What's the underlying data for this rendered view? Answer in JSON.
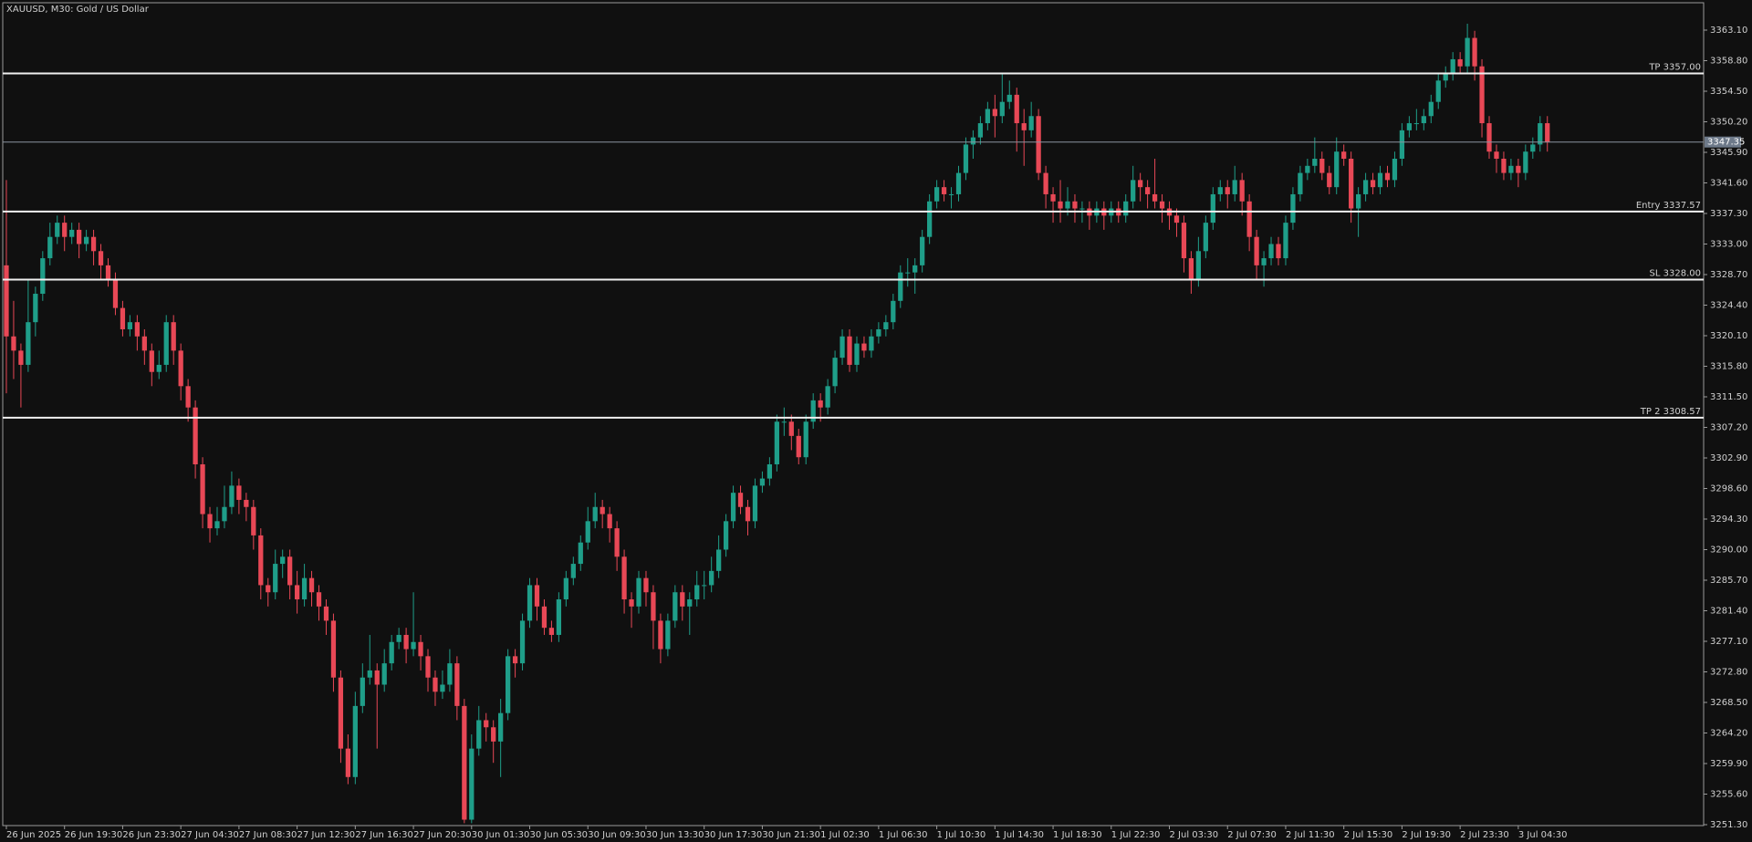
{
  "chart_data": {
    "type": "candlestick",
    "title": "XAUUSD, M30:  Gold / US Dollar",
    "up_color": "#1f9e89",
    "down_color": "#e84856",
    "ylim": [
      3251.17,
      3366.95
    ],
    "yticks": [
      {
        "value": 3363.1,
        "label": "3363.10"
      },
      {
        "value": 3358.8,
        "label": "3358.80"
      },
      {
        "value": 3354.5,
        "label": "3354.50"
      },
      {
        "value": 3350.2,
        "label": "3350.20"
      },
      {
        "value": 3345.9,
        "label": "3345.90"
      },
      {
        "value": 3341.6,
        "label": "3341.60"
      },
      {
        "value": 3337.3,
        "label": "3337.30"
      },
      {
        "value": 3333.0,
        "label": "3333.00"
      },
      {
        "value": 3328.7,
        "label": "3328.70"
      },
      {
        "value": 3324.4,
        "label": "3324.40"
      },
      {
        "value": 3320.1,
        "label": "3320.10"
      },
      {
        "value": 3315.8,
        "label": "3315.80"
      },
      {
        "value": 3311.5,
        "label": "3311.50"
      },
      {
        "value": 3307.2,
        "label": "3307.20"
      },
      {
        "value": 3302.9,
        "label": "3302.90"
      },
      {
        "value": 3298.6,
        "label": "3298.60"
      },
      {
        "value": 3294.3,
        "label": "3294.30"
      },
      {
        "value": 3290.0,
        "label": "3290.00"
      },
      {
        "value": 3285.7,
        "label": "3285.70"
      },
      {
        "value": 3281.4,
        "label": "3281.40"
      },
      {
        "value": 3277.1,
        "label": "3277.10"
      },
      {
        "value": 3272.8,
        "label": "3272.80"
      },
      {
        "value": 3268.5,
        "label": "3268.50"
      },
      {
        "value": 3264.2,
        "label": "3264.20"
      },
      {
        "value": 3259.9,
        "label": "3259.90"
      },
      {
        "value": 3255.6,
        "label": "3255.60"
      },
      {
        "value": 3251.3,
        "label": "3251.30"
      }
    ],
    "xlim": [
      -0.5,
      233.5
    ],
    "xticks": [
      {
        "value": 0,
        "label": "26 Jun 2025"
      },
      {
        "value": 8,
        "label": "26 Jun 19:30"
      },
      {
        "value": 16,
        "label": "26 Jun 23:30"
      },
      {
        "value": 24,
        "label": "27 Jun 04:30"
      },
      {
        "value": 32,
        "label": "27 Jun 08:30"
      },
      {
        "value": 40,
        "label": "27 Jun 12:30"
      },
      {
        "value": 48,
        "label": "27 Jun 16:30"
      },
      {
        "value": 56,
        "label": "27 Jun 20:30"
      },
      {
        "value": 64,
        "label": "30 Jun 01:30"
      },
      {
        "value": 72,
        "label": "30 Jun 05:30"
      },
      {
        "value": 80,
        "label": "30 Jun 09:30"
      },
      {
        "value": 88,
        "label": "30 Jun 13:30"
      },
      {
        "value": 96,
        "label": "30 Jun 17:30"
      },
      {
        "value": 104,
        "label": "30 Jun 21:30"
      },
      {
        "value": 112,
        "label": "1 Jul 02:30"
      },
      {
        "value": 120,
        "label": "1 Jul 06:30"
      },
      {
        "value": 128,
        "label": "1 Jul 10:30"
      },
      {
        "value": 136,
        "label": "1 Jul 14:30"
      },
      {
        "value": 144,
        "label": "1 Jul 18:30"
      },
      {
        "value": 152,
        "label": "1 Jul 22:30"
      },
      {
        "value": 160,
        "label": "2 Jul 03:30"
      },
      {
        "value": 168,
        "label": "2 Jul 07:30"
      },
      {
        "value": 176,
        "label": "2 Jul 11:30"
      },
      {
        "value": 184,
        "label": "2 Jul 15:30"
      },
      {
        "value": 192,
        "label": "2 Jul 19:30"
      },
      {
        "value": 200,
        "label": "2 Jul 23:30"
      },
      {
        "value": 208,
        "label": "3 Jul 04:30"
      }
    ],
    "levels": [
      {
        "value": 3357.0,
        "label": "TP 3357.00"
      },
      {
        "value": 3337.57,
        "label": "Entry 3337.57"
      },
      {
        "value": 3328.0,
        "label": "SL 3328.00"
      },
      {
        "value": 3308.57,
        "label": "TP 2 3308.57"
      }
    ],
    "current_price": {
      "value": 3347.35,
      "label": "3347.35"
    },
    "ohlc": [
      [
        3330,
        3342,
        3312,
        3320
      ],
      [
        3320,
        3325,
        3314,
        3318
      ],
      [
        3318,
        3319,
        3310,
        3316
      ],
      [
        3316,
        3328,
        3315,
        3322
      ],
      [
        3322,
        3327,
        3320,
        3326
      ],
      [
        3326,
        3332,
        3325,
        3331
      ],
      [
        3331,
        3336,
        3330,
        3334
      ],
      [
        3334,
        3337,
        3333,
        3336
      ],
      [
        3336,
        3337,
        3332,
        3334
      ],
      [
        3334,
        3336,
        3333,
        3335
      ],
      [
        3335,
        3336,
        3331,
        3333
      ],
      [
        3333,
        3335,
        3332,
        3334
      ],
      [
        3334,
        3335,
        3330,
        3332
      ],
      [
        3332,
        3333,
        3328,
        3330
      ],
      [
        3330,
        3331,
        3327,
        3328
      ],
      [
        3328,
        3329,
        3323,
        3324
      ],
      [
        3324,
        3325,
        3320,
        3321
      ],
      [
        3321,
        3323,
        3320,
        3322
      ],
      [
        3322,
        3323,
        3318,
        3320
      ],
      [
        3320,
        3321,
        3316,
        3318
      ],
      [
        3318,
        3319,
        3313,
        3315
      ],
      [
        3315,
        3318,
        3314,
        3316
      ],
      [
        3316,
        3323,
        3315,
        3322
      ],
      [
        3322,
        3323,
        3316,
        3318
      ],
      [
        3318,
        3319,
        3311,
        3313
      ],
      [
        3313,
        3314,
        3308,
        3310
      ],
      [
        3310,
        3311,
        3300,
        3302
      ],
      [
        3302,
        3303,
        3293,
        3295
      ],
      [
        3295,
        3296,
        3291,
        3293
      ],
      [
        3293,
        3296,
        3292,
        3294
      ],
      [
        3294,
        3299,
        3293,
        3296
      ],
      [
        3296,
        3301,
        3295,
        3299
      ],
      [
        3299,
        3300,
        3295,
        3297
      ],
      [
        3297,
        3298,
        3294,
        3296
      ],
      [
        3296,
        3297,
        3290,
        3292
      ],
      [
        3292,
        3293,
        3283,
        3285
      ],
      [
        3285,
        3286,
        3282,
        3284
      ],
      [
        3284,
        3290,
        3283,
        3288
      ],
      [
        3288,
        3290,
        3286,
        3289
      ],
      [
        3289,
        3290,
        3283,
        3285
      ],
      [
        3285,
        3287,
        3281,
        3283
      ],
      [
        3283,
        3288,
        3282,
        3286
      ],
      [
        3286,
        3287,
        3282,
        3284
      ],
      [
        3284,
        3285,
        3280,
        3282
      ],
      [
        3282,
        3283,
        3278,
        3280
      ],
      [
        3280,
        3281,
        3270,
        3272
      ],
      [
        3272,
        3273,
        3260,
        3262
      ],
      [
        3262,
        3264,
        3257,
        3258
      ],
      [
        3258,
        3270,
        3257,
        3268
      ],
      [
        3268,
        3274,
        3267,
        3272
      ],
      [
        3272,
        3278,
        3271,
        3273
      ],
      [
        3273,
        3274,
        3262,
        3271
      ],
      [
        3271,
        3276,
        3270,
        3274
      ],
      [
        3274,
        3278,
        3273,
        3277
      ],
      [
        3277,
        3279,
        3276,
        3278
      ],
      [
        3278,
        3279,
        3274,
        3276
      ],
      [
        3276,
        3284,
        3275,
        3277
      ],
      [
        3277,
        3278,
        3273,
        3275
      ],
      [
        3275,
        3276,
        3270,
        3272
      ],
      [
        3272,
        3273,
        3268,
        3270
      ],
      [
        3270,
        3273,
        3269,
        3271
      ],
      [
        3271,
        3276,
        3270,
        3274
      ],
      [
        3274,
        3275,
        3266,
        3268
      ],
      [
        3268,
        3269,
        3251.5,
        3252
      ],
      [
        3252,
        3264,
        3251.5,
        3262
      ],
      [
        3262,
        3268,
        3261,
        3266
      ],
      [
        3266,
        3267,
        3263,
        3265
      ],
      [
        3265,
        3266,
        3260,
        3263
      ],
      [
        3263,
        3269,
        3258,
        3267
      ],
      [
        3267,
        3276,
        3266,
        3275
      ],
      [
        3275,
        3276,
        3272,
        3274
      ],
      [
        3274,
        3281,
        3273,
        3280
      ],
      [
        3280,
        3286,
        3279,
        3285
      ],
      [
        3285,
        3286,
        3280,
        3282
      ],
      [
        3282,
        3283,
        3278,
        3279
      ],
      [
        3279,
        3280,
        3277,
        3278
      ],
      [
        3278,
        3284,
        3277,
        3283
      ],
      [
        3283,
        3287,
        3282,
        3286
      ],
      [
        3286,
        3289,
        3285,
        3288
      ],
      [
        3288,
        3292,
        3287,
        3291
      ],
      [
        3291,
        3296,
        3290,
        3294
      ],
      [
        3294,
        3298,
        3293,
        3296
      ],
      [
        3296,
        3297,
        3293,
        3295
      ],
      [
        3295,
        3296,
        3291,
        3293
      ],
      [
        3293,
        3294,
        3287,
        3289
      ],
      [
        3289,
        3290,
        3281,
        3283
      ],
      [
        3283,
        3284,
        3279,
        3282
      ],
      [
        3282,
        3287,
        3281,
        3286
      ],
      [
        3286,
        3287,
        3282,
        3284
      ],
      [
        3284,
        3285,
        3276,
        3280
      ],
      [
        3280,
        3281,
        3274,
        3276
      ],
      [
        3276,
        3281,
        3275,
        3280
      ],
      [
        3280,
        3285,
        3279,
        3284
      ],
      [
        3284,
        3285,
        3280,
        3282
      ],
      [
        3282,
        3284,
        3278,
        3283
      ],
      [
        3283,
        3287,
        3282,
        3285
      ],
      [
        3285,
        3287,
        3283,
        3285
      ],
      [
        3285,
        3289,
        3284,
        3287
      ],
      [
        3287,
        3292,
        3286,
        3290
      ],
      [
        3290,
        3295,
        3289,
        3294
      ],
      [
        3294,
        3299,
        3293,
        3298
      ],
      [
        3298,
        3299,
        3295,
        3296
      ],
      [
        3296,
        3297,
        3292,
        3294
      ],
      [
        3294,
        3300,
        3293,
        3299
      ],
      [
        3299,
        3301,
        3298,
        3300
      ],
      [
        3300,
        3303,
        3299,
        3302
      ],
      [
        3302,
        3309,
        3301,
        3308
      ],
      [
        3308,
        3310,
        3306,
        3308
      ],
      [
        3308,
        3309,
        3304,
        3306
      ],
      [
        3306,
        3307,
        3302,
        3303
      ],
      [
        3303,
        3309,
        3302,
        3308
      ],
      [
        3308,
        3312,
        3307,
        3311
      ],
      [
        3311,
        3312,
        3308,
        3310
      ],
      [
        3310,
        3314,
        3309,
        3313
      ],
      [
        3313,
        3318,
        3312,
        3317
      ],
      [
        3317,
        3321,
        3316,
        3320
      ],
      [
        3320,
        3321,
        3315,
        3316
      ],
      [
        3316,
        3320,
        3315,
        3319
      ],
      [
        3319,
        3320,
        3317,
        3318
      ],
      [
        3318,
        3321,
        3317,
        3320
      ],
      [
        3320,
        3322,
        3319,
        3321
      ],
      [
        3321,
        3323,
        3320,
        3322
      ],
      [
        3322,
        3326,
        3321,
        3325
      ],
      [
        3325,
        3330,
        3324,
        3329
      ],
      [
        3329,
        3331,
        3327,
        3329
      ],
      [
        3329,
        3331,
        3326,
        3330
      ],
      [
        3330,
        3335,
        3329,
        3334
      ],
      [
        3334,
        3340,
        3333,
        3339
      ],
      [
        3339,
        3342,
        3338,
        3341
      ],
      [
        3341,
        3342,
        3339,
        3340
      ],
      [
        3340,
        3341,
        3338,
        3340
      ],
      [
        3340,
        3344,
        3339,
        3343
      ],
      [
        3343,
        3348,
        3342,
        3347
      ],
      [
        3347,
        3349,
        3345,
        3348
      ],
      [
        3348,
        3351,
        3347,
        3350
      ],
      [
        3350,
        3353,
        3349,
        3352
      ],
      [
        3352,
        3354,
        3348,
        3351
      ],
      [
        3351,
        3357,
        3350,
        3353
      ],
      [
        3353,
        3356,
        3352,
        3354
      ],
      [
        3354,
        3355,
        3346,
        3350
      ],
      [
        3350,
        3352,
        3344,
        3349
      ],
      [
        3349,
        3353,
        3348,
        3351
      ],
      [
        3351,
        3352,
        3342,
        3343
      ],
      [
        3343,
        3344,
        3338,
        3340
      ],
      [
        3340,
        3341,
        3336,
        3339
      ],
      [
        3339,
        3342,
        3336,
        3338
      ],
      [
        3338,
        3341,
        3337,
        3339
      ],
      [
        3339,
        3340,
        3336,
        3338
      ],
      [
        3338,
        3339,
        3336,
        3338
      ],
      [
        3338,
        3339,
        3335,
        3337
      ],
      [
        3337,
        3339,
        3336,
        3338
      ],
      [
        3338,
        3339,
        3335,
        3337
      ],
      [
        3337,
        3339,
        3336,
        3338
      ],
      [
        3338,
        3339,
        3336,
        3337
      ],
      [
        3337,
        3340,
        3336,
        3339
      ],
      [
        3339,
        3344,
        3338,
        3342
      ],
      [
        3342,
        3343,
        3339,
        3341
      ],
      [
        3341,
        3342,
        3338,
        3340
      ],
      [
        3340,
        3345,
        3338,
        3339
      ],
      [
        3339,
        3340,
        3336,
        3338
      ],
      [
        3338,
        3339,
        3335,
        3337
      ],
      [
        3337,
        3338,
        3334,
        3336
      ],
      [
        3336,
        3337,
        3329,
        3331
      ],
      [
        3331,
        3332,
        3326,
        3328
      ],
      [
        3328,
        3334,
        3327,
        3332
      ],
      [
        3332,
        3337,
        3331,
        3336
      ],
      [
        3336,
        3341,
        3335,
        3340
      ],
      [
        3340,
        3342,
        3339,
        3341
      ],
      [
        3341,
        3342,
        3338,
        3340
      ],
      [
        3340,
        3344,
        3339,
        3342
      ],
      [
        3342,
        3343,
        3337,
        3339
      ],
      [
        3339,
        3340,
        3332,
        3334
      ],
      [
        3334,
        3335,
        3328,
        3330
      ],
      [
        3330,
        3332,
        3327,
        3331
      ],
      [
        3331,
        3334,
        3330,
        3333
      ],
      [
        3333,
        3334,
        3330,
        3331
      ],
      [
        3331,
        3337,
        3330,
        3336
      ],
      [
        3336,
        3341,
        3335,
        3340
      ],
      [
        3340,
        3344,
        3339,
        3343
      ],
      [
        3343,
        3345,
        3342,
        3344
      ],
      [
        3344,
        3348,
        3343,
        3345
      ],
      [
        3345,
        3346,
        3342,
        3343
      ],
      [
        3343,
        3344,
        3340,
        3341
      ],
      [
        3341,
        3348,
        3340,
        3346
      ],
      [
        3346,
        3347,
        3344,
        3345
      ],
      [
        3345,
        3346,
        3336,
        3338
      ],
      [
        3338,
        3341,
        3334,
        3340
      ],
      [
        3340,
        3343,
        3339,
        3342
      ],
      [
        3342,
        3343,
        3340,
        3341
      ],
      [
        3341,
        3344,
        3340,
        3343
      ],
      [
        3343,
        3344,
        3341,
        3342
      ],
      [
        3342,
        3346,
        3341,
        3345
      ],
      [
        3345,
        3350,
        3344,
        3349
      ],
      [
        3349,
        3351,
        3348,
        3350
      ],
      [
        3350,
        3352,
        3349,
        3350
      ],
      [
        3350,
        3352,
        3349,
        3351
      ],
      [
        3351,
        3354,
        3350,
        3353
      ],
      [
        3353,
        3357,
        3352,
        3356
      ],
      [
        3356,
        3358,
        3355,
        3357
      ],
      [
        3357,
        3360,
        3356,
        3359
      ],
      [
        3359,
        3360,
        3357,
        3358
      ],
      [
        3358,
        3364,
        3357,
        3362
      ],
      [
        3362,
        3363,
        3356,
        3358
      ],
      [
        3358,
        3359,
        3348,
        3350
      ],
      [
        3350,
        3351,
        3345,
        3346
      ],
      [
        3346,
        3347,
        3343,
        3345
      ],
      [
        3345,
        3346,
        3342,
        3343
      ],
      [
        3343,
        3345,
        3342,
        3344
      ],
      [
        3344,
        3345,
        3341,
        3343
      ],
      [
        3343,
        3347,
        3342,
        3346
      ],
      [
        3346,
        3348,
        3345,
        3347
      ],
      [
        3347,
        3351,
        3346,
        3350
      ],
      [
        3350,
        3351,
        3346,
        3347.35
      ]
    ]
  }
}
